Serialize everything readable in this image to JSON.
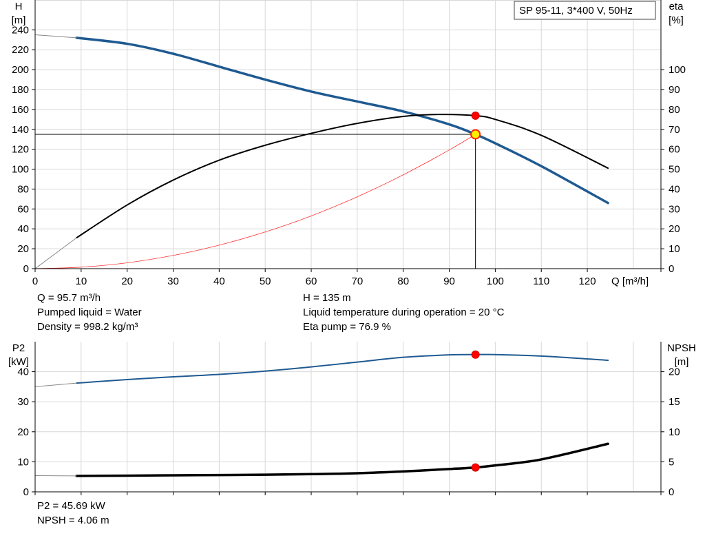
{
  "chart_data": [
    {
      "type": "line",
      "title": "SP 95-11, 3*400 V, 50Hz",
      "ylabel": "H",
      "ylabel_unit": "[m]",
      "y2label": "eta",
      "y2label_unit": "[%]",
      "xlabel": "Q [m³/h]",
      "xlim": [
        0,
        136
      ],
      "ylim": [
        0,
        270
      ],
      "y2lim": [
        0,
        135
      ],
      "xticks": [
        0,
        10,
        20,
        30,
        40,
        50,
        60,
        70,
        80,
        90,
        100,
        110,
        120
      ],
      "yticks": [
        0,
        20,
        40,
        60,
        80,
        100,
        120,
        140,
        160,
        180,
        200,
        220,
        240
      ],
      "y2ticks": [
        0,
        10,
        20,
        30,
        40,
        50,
        60,
        70,
        80,
        90,
        100
      ],
      "grid": true,
      "series": [
        {
          "name": "H",
          "axis": "left",
          "color": "#1f5a91",
          "width": 3.5,
          "x": [
            9,
            20,
            30,
            40,
            50,
            60,
            70,
            80,
            90,
            95.7,
            100,
            110,
            124.5
          ],
          "y": [
            232,
            226,
            216,
            203,
            190,
            178,
            168,
            158,
            145,
            135,
            126,
            103,
            66
          ]
        },
        {
          "name": "H (extrapolated)",
          "axis": "left",
          "color": "#888888",
          "width": 1,
          "x": [
            0,
            9
          ],
          "y": [
            235,
            232
          ]
        },
        {
          "name": "eta",
          "axis": "right",
          "color": "#000000",
          "width": 2,
          "x": [
            9,
            20,
            30,
            40,
            50,
            60,
            70,
            80,
            88,
            95.7,
            100,
            110,
            124.5
          ],
          "y": [
            15.5,
            32,
            44.5,
            54.5,
            62,
            68,
            73,
            76.5,
            77.5,
            76.9,
            75,
            67,
            50.5
          ]
        },
        {
          "name": "eta (extrapolated)",
          "axis": "right",
          "color": "#888888",
          "width": 1,
          "x": [
            0,
            9
          ],
          "y": [
            0,
            15.5
          ]
        },
        {
          "name": "system curve",
          "axis": "left",
          "color": "#ff3333",
          "width": 0.8,
          "x": [
            0,
            10,
            20,
            30,
            40,
            50,
            60,
            70,
            80,
            90,
            95.7
          ],
          "y": [
            0,
            1.5,
            5.9,
            13.3,
            23.6,
            36.9,
            53,
            72.2,
            94.3,
            119.3,
            135
          ]
        }
      ],
      "operating_point": {
        "q": 95.7,
        "h": 135,
        "eta": 76.9
      },
      "info": [
        {
          "text": "Q = 95.7 m³/h",
          "col": 0
        },
        {
          "text": "Pumped liquid = Water",
          "col": 0
        },
        {
          "text": "Density = 998.2 kg/m³",
          "col": 0
        },
        {
          "text": "H = 135 m",
          "col": 1
        },
        {
          "text": "Liquid temperature during operation = 20 °C",
          "col": 1
        },
        {
          "text": "Eta pump = 76.9 %",
          "col": 1
        }
      ]
    },
    {
      "type": "line",
      "ylabel": "P2",
      "ylabel_unit": "[kW]",
      "y2label": "NPSH",
      "y2label_unit": "[m]",
      "xlim": [
        0,
        136
      ],
      "ylim": [
        0,
        50
      ],
      "y2lim": [
        0,
        25
      ],
      "xticks": [
        0,
        10,
        20,
        30,
        40,
        50,
        60,
        70,
        80,
        90,
        100,
        110,
        120
      ],
      "yticks": [
        0,
        10,
        20,
        30,
        40
      ],
      "y2ticks": [
        0,
        5,
        10,
        15,
        20
      ],
      "grid": true,
      "series": [
        {
          "name": "P2",
          "axis": "left",
          "color": "#1f5a91",
          "width": 2,
          "x": [
            9,
            20,
            30,
            40,
            50,
            60,
            70,
            80,
            90,
            95.7,
            100,
            110,
            124.5
          ],
          "y": [
            36.2,
            37.4,
            38.3,
            39.1,
            40.2,
            41.6,
            43.2,
            44.8,
            45.6,
            45.69,
            45.7,
            45.2,
            43.8
          ]
        },
        {
          "name": "P2 (extrapolated)",
          "axis": "left",
          "color": "#888888",
          "width": 1,
          "x": [
            0,
            9
          ],
          "y": [
            35,
            36.2
          ]
        },
        {
          "name": "NPSH",
          "axis": "right",
          "color": "#000000",
          "width": 3.5,
          "x": [
            9,
            20,
            30,
            40,
            50,
            60,
            70,
            80,
            90,
            95.7,
            100,
            110,
            124.5
          ],
          "y": [
            2.65,
            2.7,
            2.75,
            2.8,
            2.85,
            2.95,
            3.1,
            3.4,
            3.8,
            4.06,
            4.4,
            5.4,
            8
          ]
        },
        {
          "name": "NPSH (extrapolated)",
          "axis": "right",
          "color": "#888888",
          "width": 1,
          "x": [
            0,
            9
          ],
          "y": [
            2.7,
            2.65
          ]
        }
      ],
      "operating_point": {
        "q": 95.7,
        "p2": 45.69,
        "npsh": 4.06
      },
      "info": [
        {
          "text": "P2 = 45.69 kW",
          "col": 0
        },
        {
          "text": "NPSH = 4.06 m",
          "col": 0
        }
      ]
    }
  ]
}
